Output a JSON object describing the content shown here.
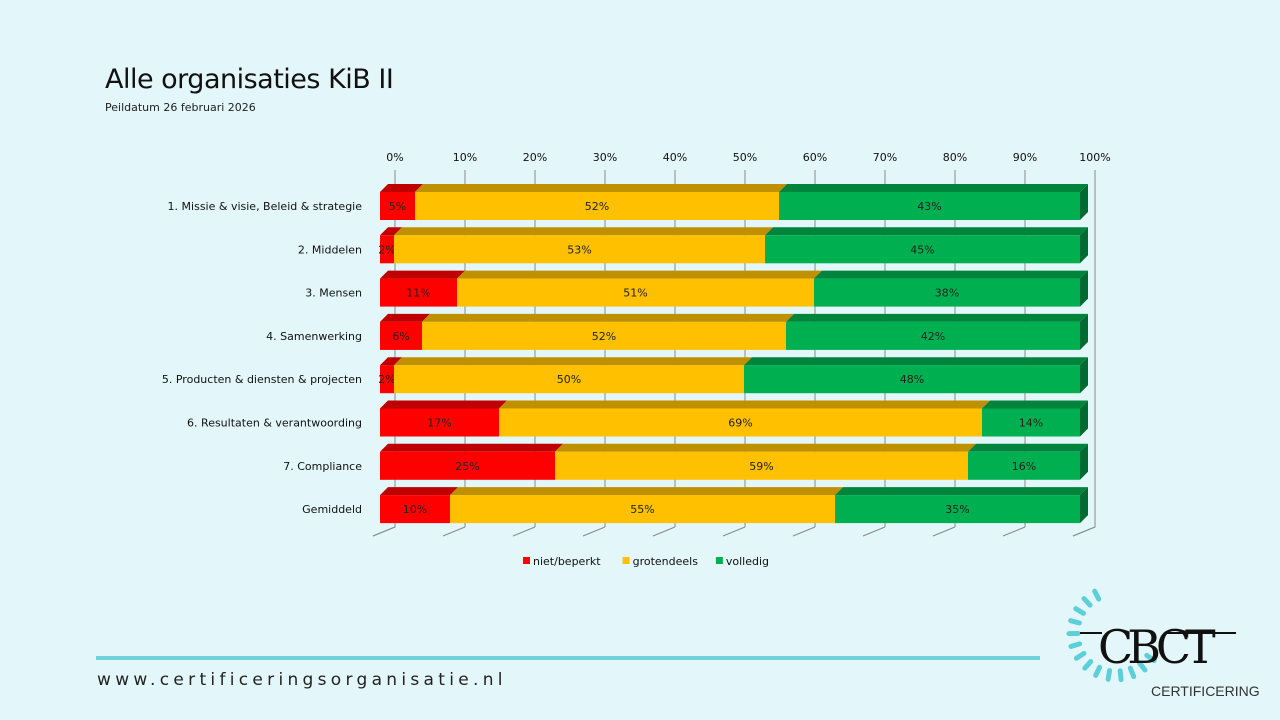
{
  "header": {
    "title": "Alle organisaties KiB II",
    "subtitle": "Peildatum 26 februari 2026"
  },
  "chart_data": {
    "type": "bar",
    "orientation": "horizontal",
    "stacked": true,
    "style": "3d",
    "categories": [
      "1. Missie & visie, Beleid & strategie",
      "2. Middelen",
      "3. Mensen",
      "4. Samenwerking",
      "5. Producten & diensten & projecten",
      "6. Resultaten & verantwoording",
      "7. Compliance",
      "Gemiddeld"
    ],
    "series": [
      {
        "name": "niet/beperkt",
        "color": "#ff0000",
        "values": [
          5,
          2,
          11,
          6,
          2,
          17,
          25,
          10
        ]
      },
      {
        "name": "grotendeels",
        "color": "#ffc000",
        "values": [
          52,
          53,
          51,
          52,
          50,
          69,
          59,
          55
        ]
      },
      {
        "name": "volledig",
        "color": "#00b050",
        "values": [
          43,
          45,
          38,
          42,
          48,
          14,
          16,
          35
        ]
      }
    ],
    "xlim": [
      0,
      100
    ],
    "xticks": [
      "0%",
      "10%",
      "20%",
      "30%",
      "40%",
      "50%",
      "60%",
      "70%",
      "80%",
      "90%",
      "100%"
    ],
    "x_axis_position": "top",
    "grid": true,
    "legend": "bottom"
  },
  "footer": {
    "url": "www.certificeringsorganisatie.nl"
  },
  "logo": {
    "text": "CBCT",
    "subtext": "CERTIFICERING",
    "color": "#5ccfd8"
  }
}
